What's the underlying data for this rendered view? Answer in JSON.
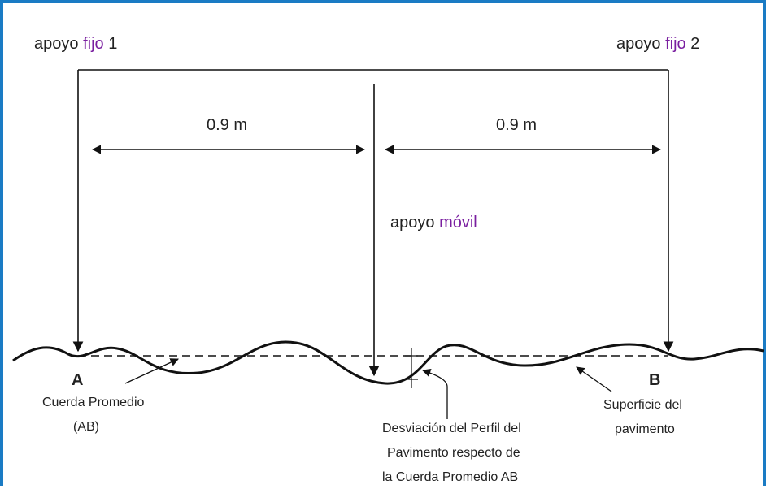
{
  "labels": {
    "fixed_support_1_prefix": "apoyo ",
    "fixed_support_1_word": "fijo",
    "fixed_support_1_suffix": " 1",
    "fixed_support_2_prefix": "apoyo ",
    "fixed_support_2_word": "fijo",
    "fixed_support_2_suffix": " 2",
    "mobile_support_prefix": "apoyo ",
    "mobile_support_word": "móvil",
    "distance_left": "0.9 m",
    "distance_right": "0.9 m",
    "point_a": "A",
    "point_b": "B",
    "chord_line1": "Cuerda Promedio",
    "chord_line2": "(AB)",
    "surface_line1": "Superficie del",
    "surface_line2": "pavimento",
    "deviation_line1": "Desviación del Perfil del",
    "deviation_line2": "Pavimento respecto de",
    "deviation_line3": "la Cuerda Promedio AB"
  },
  "colors": {
    "frame": "#1a7bc4",
    "line": "#111111",
    "highlight": "#7a1fa0"
  }
}
